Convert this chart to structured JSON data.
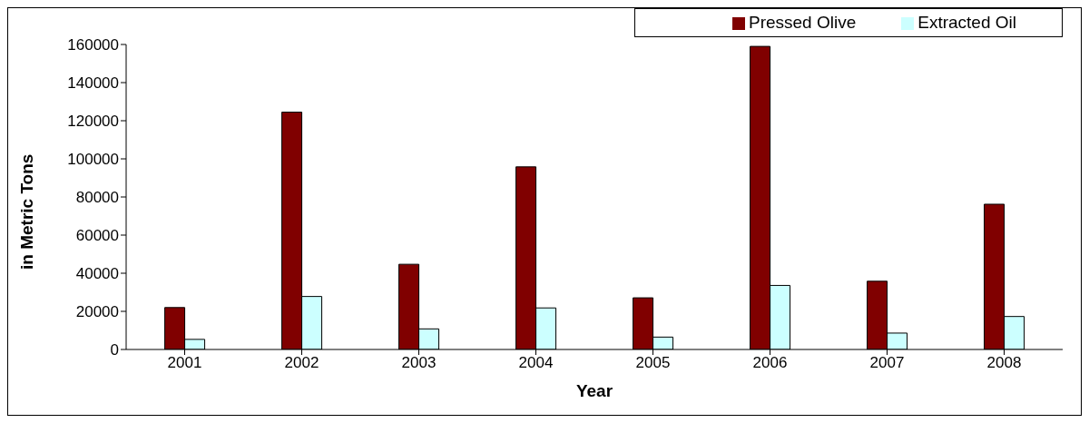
{
  "chart_data": {
    "type": "bar",
    "categories": [
      "2001",
      "2002",
      "2003",
      "2004",
      "2005",
      "2006",
      "2007",
      "2008"
    ],
    "series": [
      {
        "name": "Pressed Olive",
        "color": "#800000",
        "values": [
          22000,
          124500,
          44700,
          95800,
          27100,
          159000,
          35800,
          76200
        ]
      },
      {
        "name": "Extracted Oil",
        "color": "#ccffff",
        "values": [
          5300,
          27800,
          10800,
          21800,
          6500,
          33600,
          8600,
          17300
        ]
      }
    ],
    "xlabel": "Year",
    "ylabel": "in Metric Tons",
    "ylim": [
      0,
      160000
    ],
    "yticks": [
      0,
      20000,
      40000,
      60000,
      80000,
      100000,
      120000,
      140000,
      160000
    ],
    "grid": false,
    "legend": "top right"
  }
}
